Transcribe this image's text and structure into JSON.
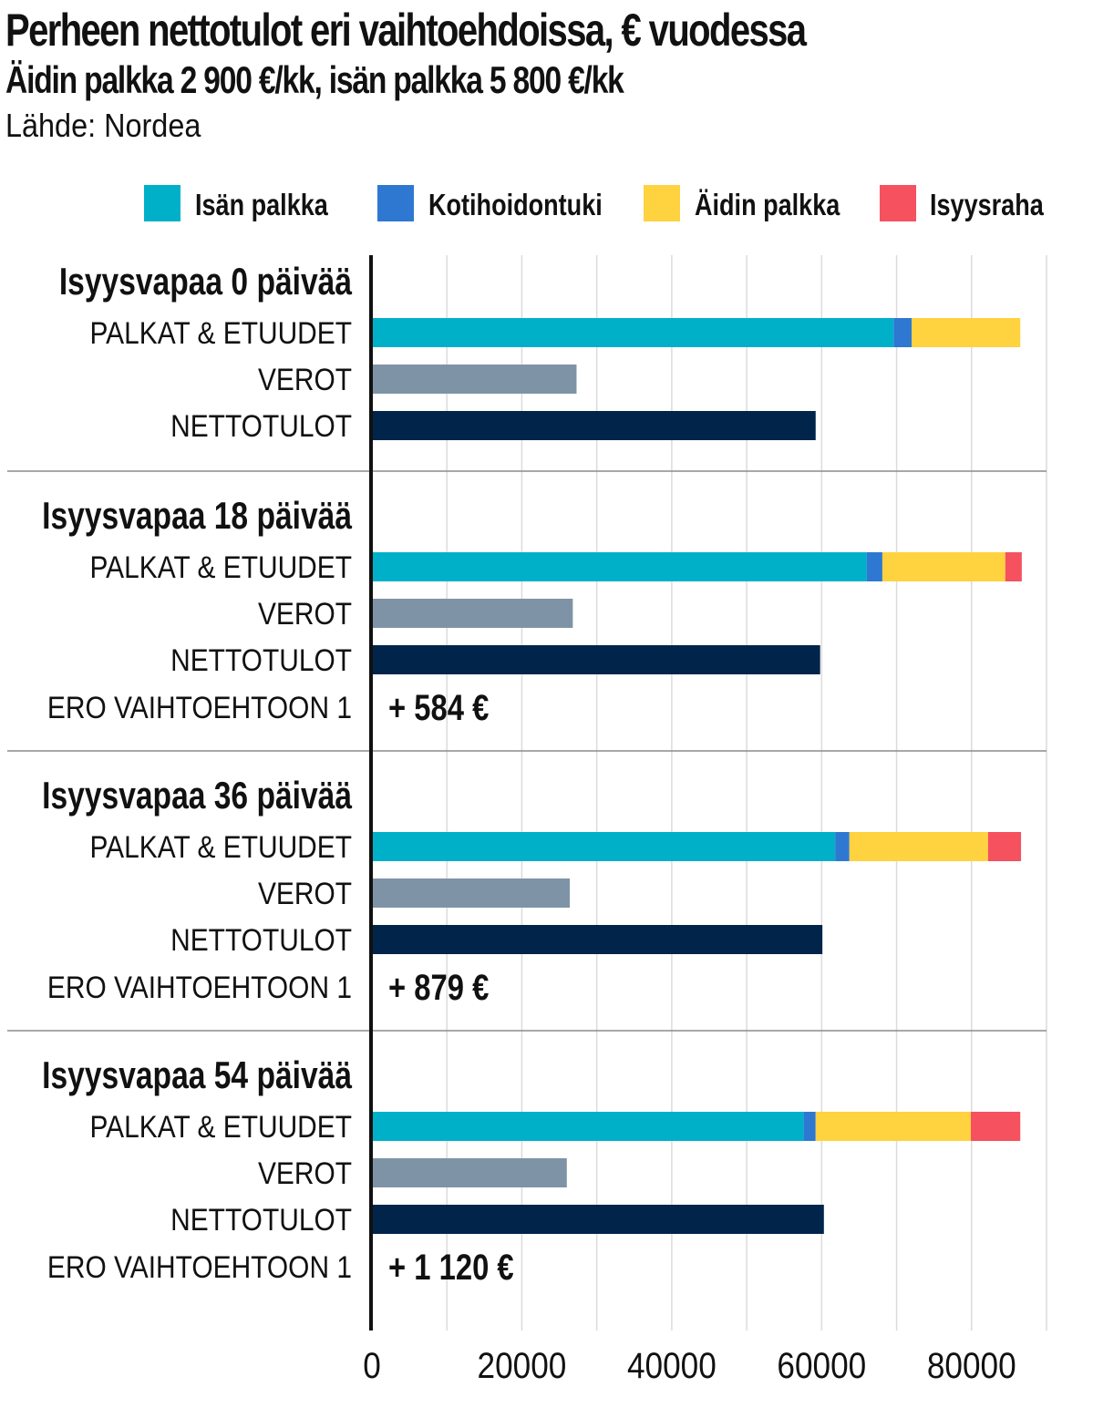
{
  "title": "Perheen nettotulot eri vaihtoehdoissa, € vuodessa",
  "subtitle": "Äidin palkka 2 900 €/kk, isän palkka 5 800 €/kk",
  "source": "Lähde: Nordea",
  "chart_data": {
    "type": "bar",
    "orientation": "horizontal",
    "stacked": true,
    "title": "Perheen nettotulot eri vaihtoehdoissa, € vuodessa",
    "subtitle": "Äidin palkka 2 900 €/kk, isän palkka 5 800 €/kk",
    "xlim": [
      0,
      90000
    ],
    "x_ticks": [
      0,
      20000,
      40000,
      60000,
      80000
    ],
    "x_tick_labels": [
      "0",
      "20000",
      "40000",
      "60000",
      "80000"
    ],
    "grid": true,
    "legend_position": "top-right",
    "legend": [
      {
        "key": "isa",
        "name": "Isän palkka",
        "color": "#00B0C8"
      },
      {
        "key": "koti",
        "name": "Kotihoidontuki",
        "color": "#2E78D2"
      },
      {
        "key": "aiti",
        "name": "Äidin palkka",
        "color": "#FFD23F"
      },
      {
        "key": "isyys",
        "name": "Isyysraha",
        "color": "#F5515F"
      }
    ],
    "colors": {
      "verot": "#7F93A6",
      "netto": "#00244A"
    },
    "row_labels": {
      "gross": "PALKAT & ETUUDET",
      "tax": "VEROT",
      "net": "NETTOTULOT",
      "diff": "ERO VAIHTOEHTOON 1"
    },
    "groups": [
      {
        "title": "Isyysvapaa 0 päivää",
        "gross": {
          "isa": 69600,
          "koti": 2400,
          "aiti": 14500,
          "isyys": 0
        },
        "tax": 27300,
        "net": 59200,
        "diff_label": ""
      },
      {
        "title": "Isyysvapaa 18 päivää",
        "gross": {
          "isa": 66000,
          "koti": 2100,
          "aiti": 16400,
          "isyys": 2200
        },
        "tax": 26800,
        "net": 59800,
        "diff_label": "+ 584 €"
      },
      {
        "title": "Isyysvapaa 36 päivää",
        "gross": {
          "isa": 61800,
          "koti": 1900,
          "aiti": 18500,
          "isyys": 4400
        },
        "tax": 26400,
        "net": 60100,
        "diff_label": "+ 879 €"
      },
      {
        "title": "Isyysvapaa 54 päivää",
        "gross": {
          "isa": 57600,
          "koti": 1600,
          "aiti": 20700,
          "isyys": 6600
        },
        "tax": 26000,
        "net": 60300,
        "diff_label": "+ 1 120 €"
      }
    ]
  }
}
